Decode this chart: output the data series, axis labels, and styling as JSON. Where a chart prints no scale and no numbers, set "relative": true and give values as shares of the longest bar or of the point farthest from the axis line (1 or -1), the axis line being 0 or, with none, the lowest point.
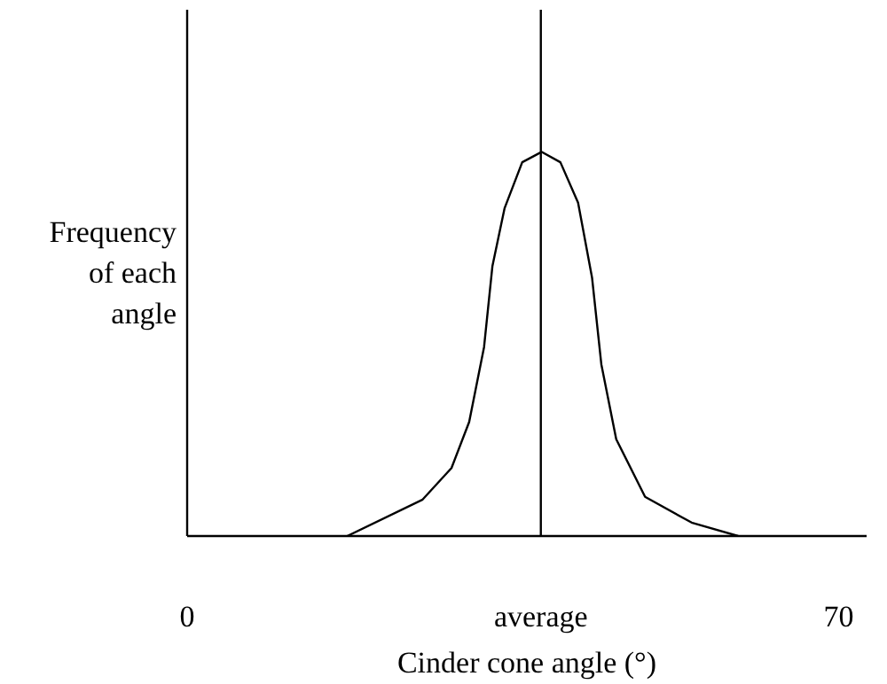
{
  "chart_data": {
    "type": "line",
    "relative": true,
    "xlabel": "Cinder cone angle (°)",
    "ylabel": "Frequency\nof each\nangle",
    "xlim": [
      0,
      73
    ],
    "xticks": [
      0,
      70
    ],
    "grid": false,
    "marker": "none",
    "line_style": "solid",
    "ref_lines": [
      {
        "axis": "x",
        "value": 38,
        "label": "average",
        "color": "#000000"
      }
    ],
    "series": [
      {
        "color": "#000000",
        "x": [
          17.2,
          25.3,
          28.4,
          30.3,
          31.9,
          32.8,
          34.1,
          36.0,
          38.1,
          40.1,
          42.0,
          43.5,
          44.5,
          46.1,
          49.2,
          54.2,
          59.2
        ],
        "values": [
          0,
          0.095,
          0.177,
          0.297,
          0.492,
          0.703,
          0.853,
          0.973,
          1.0,
          0.973,
          0.868,
          0.673,
          0.447,
          0.252,
          0.102,
          0.035,
          0
        ]
      }
    ]
  }
}
